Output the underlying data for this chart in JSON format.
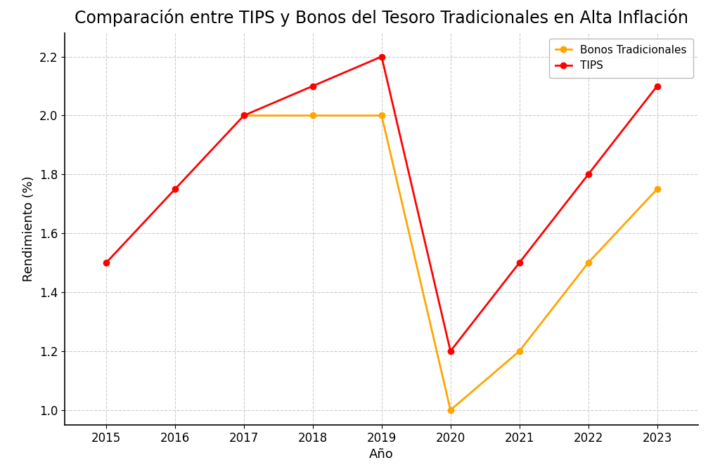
{
  "title": "Comparación entre TIPS y Bonos del Tesoro Tradicionales en Alta Inflación",
  "xlabel": "Año",
  "ylabel": "Rendimiento (%)",
  "years": [
    2015,
    2016,
    2017,
    2018,
    2019,
    2020,
    2021,
    2022,
    2023
  ],
  "bonos_tradicionales": [
    null,
    null,
    2.0,
    2.0,
    2.0,
    1.0,
    1.2,
    1.5,
    1.75
  ],
  "tips": [
    1.5,
    1.75,
    2.0,
    2.1,
    2.2,
    1.2,
    1.5,
    1.8,
    2.1
  ],
  "bonos_color": "#FFA500",
  "tips_color": "#FF0000",
  "background_color": "#FFFFFF",
  "grid_color": "#CCCCCC",
  "ylim": [
    0.95,
    2.28
  ],
  "xlim": [
    2014.4,
    2023.6
  ],
  "title_fontsize": 17,
  "axis_label_fontsize": 13,
  "tick_fontsize": 12,
  "legend_fontsize": 11,
  "line_width": 2,
  "marker": "o",
  "marker_size": 6,
  "legend_label_bonos": "Bonos Tradicionales",
  "legend_label_tips": "TIPS"
}
